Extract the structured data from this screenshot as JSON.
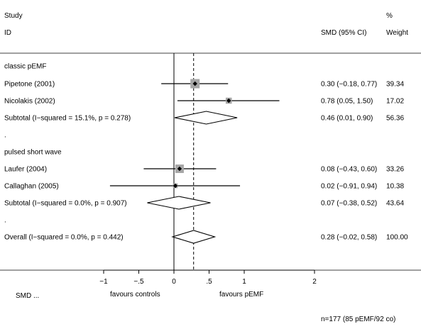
{
  "header": {
    "study_line1": "Study",
    "study_line2": "ID",
    "smd_header": "SMD (95% CI)",
    "weight_line1": "%",
    "weight_line2": "Weight"
  },
  "footer": {
    "smd_label": "SMD ...",
    "favours_left": "favours controls",
    "favours_right": "favours pEMF",
    "n_note": "n=177 (85 pEMF/92 co)"
  },
  "chart_data": {
    "type": "forest",
    "xlim": [
      -1,
      2
    ],
    "xticks": [
      -1,
      -0.5,
      0,
      0.5,
      1,
      2
    ],
    "xtick_labels": [
      "−1",
      "−.5",
      "0",
      ".5",
      "1",
      "2"
    ],
    "null_line": 0,
    "overall_line": 0.28,
    "colors": {
      "box": "#a6a6a6",
      "line": "#000000"
    },
    "rows": [
      {
        "kind": "group",
        "label": "classic pEMF"
      },
      {
        "kind": "study",
        "label": "Pipetone (2001)",
        "est": 0.3,
        "lo": -0.18,
        "hi": 0.77,
        "ci_text": "0.30 (−0.18, 0.77)",
        "weight": "39.34",
        "weight_value": 39.34
      },
      {
        "kind": "study",
        "label": "Nicolakis (2002)",
        "est": 0.78,
        "lo": 0.05,
        "hi": 1.5,
        "ci_text": "0.78 (0.05, 1.50)",
        "weight": "17.02",
        "weight_value": 17.02
      },
      {
        "kind": "subtotal",
        "label": "Subtotal  (I−squared = 15.1%, p = 0.278)",
        "est": 0.46,
        "lo": 0.01,
        "hi": 0.9,
        "ci_text": "0.46 (0.01, 0.90)",
        "weight": "56.36"
      },
      {
        "kind": "spacer",
        "label": "."
      },
      {
        "kind": "group",
        "label": "pulsed short wave"
      },
      {
        "kind": "study",
        "label": "Laufer (2004)",
        "est": 0.08,
        "lo": -0.43,
        "hi": 0.6,
        "ci_text": "0.08 (−0.43, 0.60)",
        "weight": "33.26",
        "weight_value": 33.26
      },
      {
        "kind": "study",
        "label": "Callaghan (2005)",
        "est": 0.02,
        "lo": -0.91,
        "hi": 0.94,
        "ci_text": "0.02 (−0.91, 0.94)",
        "weight": "10.38",
        "weight_value": 10.38
      },
      {
        "kind": "subtotal",
        "label": "Subtotal  (I−squared = 0.0%, p = 0.907)",
        "est": 0.07,
        "lo": -0.38,
        "hi": 0.52,
        "ci_text": "0.07 (−0.38, 0.52)",
        "weight": "43.64"
      },
      {
        "kind": "spacer",
        "label": "."
      },
      {
        "kind": "overall",
        "label": "Overall  (I−squared = 0.0%, p = 0.442)",
        "est": 0.28,
        "lo": -0.02,
        "hi": 0.58,
        "ci_text": "0.28 (−0.02, 0.58)",
        "weight": "100.00"
      }
    ]
  }
}
